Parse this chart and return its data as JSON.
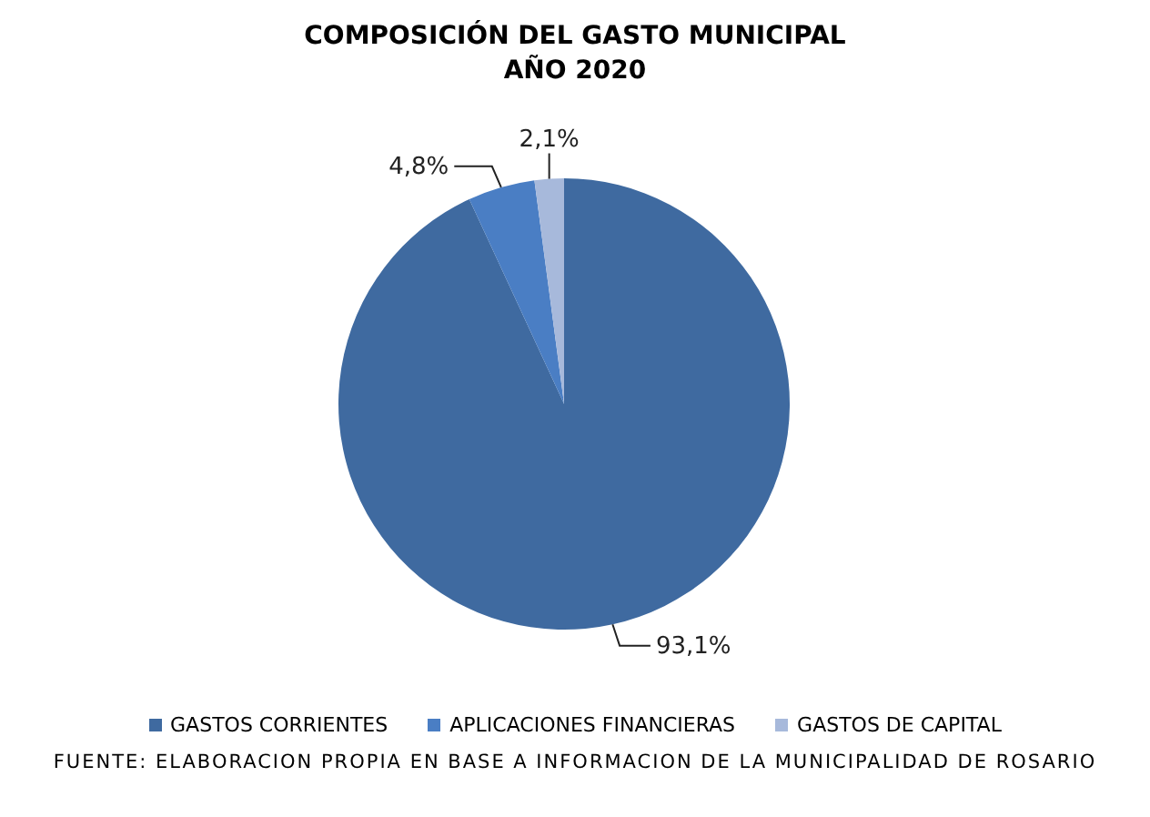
{
  "chart_data": {
    "type": "pie",
    "title": "COMPOSICIÓN DEL GASTO MUNICIPAL\nAÑO 2020",
    "categories": [
      "GASTOS CORRIENTES",
      "APLICACIONES FINANCIERAS",
      "GASTOS DE CAPITAL"
    ],
    "values": [
      93.1,
      4.8,
      2.1
    ],
    "colors": [
      "#3f6aa0",
      "#4a7ec4",
      "#a7b9db"
    ],
    "value_labels": [
      "93,1%",
      "4,8%",
      "2,1%"
    ],
    "legend": "bottom",
    "annotations": [
      "FUENTE: ELABORACION PROPIA EN BASE A INFORMACION DE LA MUNICIPALIDAD DE ROSARIO"
    ]
  }
}
